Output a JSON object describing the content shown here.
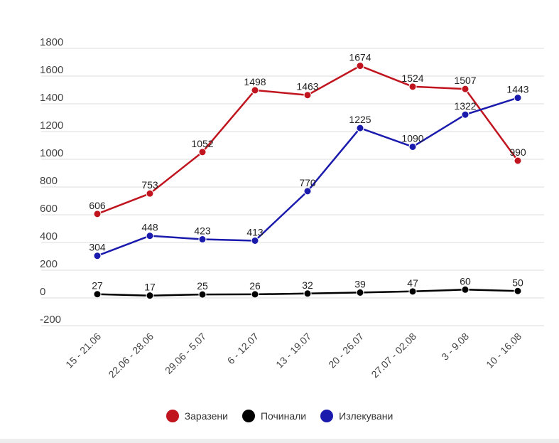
{
  "chart_data": {
    "type": "line",
    "categories": [
      "15 - 21.06",
      "22.06 - 28.06",
      "29.06 - 5.07",
      "6 - 12.07",
      "13 - 19.07",
      "20 - 26.07",
      "27.07 - 02.08",
      "3 - 9.08",
      "10 - 16.08"
    ],
    "series": [
      {
        "name": "Заразени",
        "color": "#c0151f",
        "values": [
          606,
          753,
          1052,
          1498,
          1463,
          1674,
          1524,
          1507,
          990
        ]
      },
      {
        "name": "Починали",
        "color": "#000000",
        "values": [
          27,
          17,
          25,
          26,
          32,
          39,
          47,
          60,
          50
        ]
      },
      {
        "name": "Излекувани",
        "color": "#1a1aad",
        "values": [
          304,
          448,
          423,
          413,
          770,
          1225,
          1090,
          1322,
          1443
        ]
      }
    ],
    "yticks": [
      "1800",
      "1600",
      "1400",
      "1200",
      "1000",
      "800",
      "600",
      "400",
      "200",
      "0",
      "-200"
    ],
    "ylim": [
      -200,
      1800
    ],
    "grid": true,
    "legend_position": "bottom"
  }
}
